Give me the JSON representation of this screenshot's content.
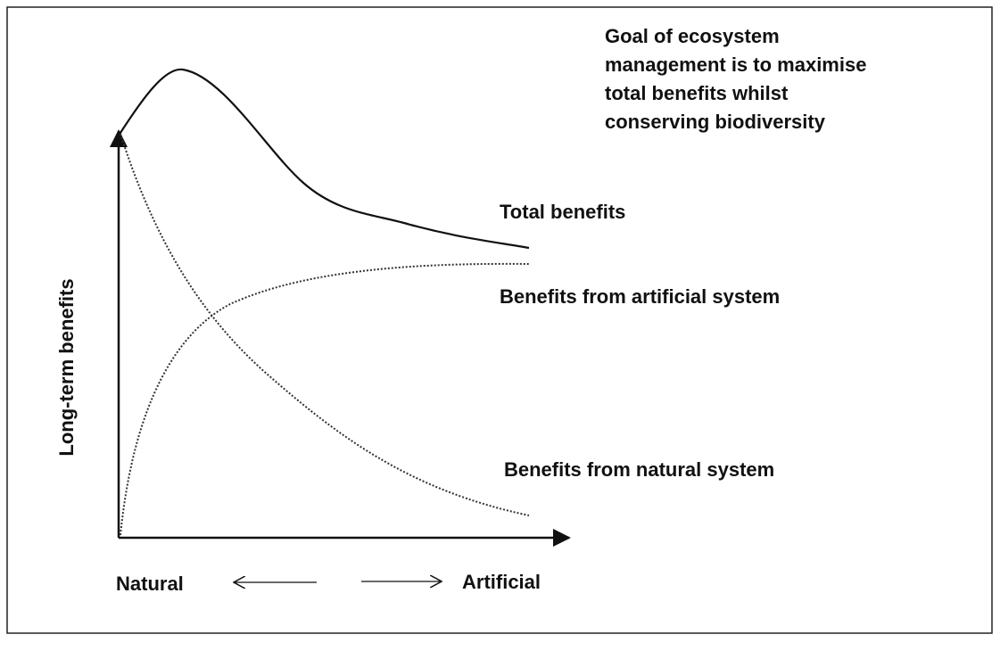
{
  "annotation": [
    "Goal of ecosystem",
    "management is to maximise",
    "total benefits whilst",
    "conserving biodiversity"
  ],
  "curve_labels": {
    "total": "Total benefits",
    "artificial": "Benefits from artificial system",
    "natural": "Benefits from natural system"
  },
  "y_axis_label": "Long-term benefits",
  "x_axis_labels": {
    "left": "Natural",
    "right": "Artificial"
  }
}
